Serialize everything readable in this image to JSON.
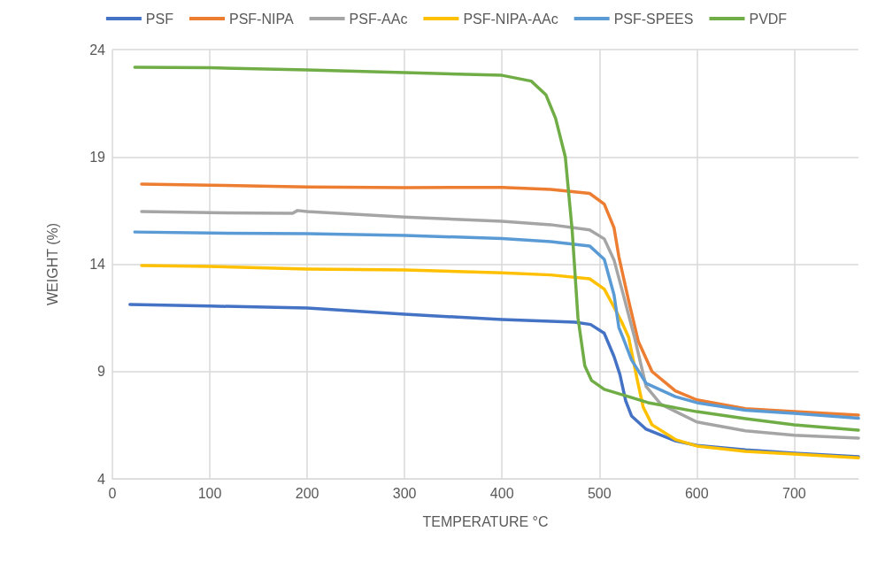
{
  "chart_data": {
    "type": "line",
    "xlabel": "TEMPERATURE °C",
    "ylabel": "WEIGHT (%)",
    "xlim": [
      0,
      766
    ],
    "xticks": [
      0,
      100,
      200,
      300,
      400,
      500,
      600,
      700
    ],
    "ylim": [
      4,
      24
    ],
    "yticks": [
      4,
      9,
      14,
      19,
      24
    ],
    "grid": true,
    "legend": "top",
    "marker": "none",
    "line_style": "solid",
    "series": [
      {
        "name": "PSF",
        "color": "#4472c4",
        "x": [
          18,
          100,
          200,
          300,
          400,
          475,
          491,
          505,
          515,
          521,
          527,
          533,
          548,
          578,
          600,
          650,
          700,
          766
        ],
        "values": [
          12.12,
          12.05,
          11.96,
          11.67,
          11.42,
          11.3,
          11.19,
          10.78,
          9.7,
          8.87,
          7.63,
          6.93,
          6.31,
          5.77,
          5.56,
          5.35,
          5.2,
          5.03
        ]
      },
      {
        "name": "PSF-NIPA",
        "color": "#ed7d31",
        "x": [
          30,
          100,
          200,
          300,
          400,
          450,
          490,
          505,
          515,
          520,
          530,
          540,
          554,
          578,
          600,
          650,
          700,
          766
        ],
        "values": [
          17.73,
          17.68,
          17.6,
          17.57,
          17.58,
          17.48,
          17.3,
          16.8,
          15.7,
          14.35,
          12.3,
          10.4,
          9.0,
          8.1,
          7.68,
          7.27,
          7.13,
          6.97
        ]
      },
      {
        "name": "PSF-AAc",
        "color": "#a5a5a5",
        "x": [
          30,
          100,
          185,
          190,
          200,
          300,
          400,
          450,
          490,
          505,
          515,
          525,
          536,
          548,
          563,
          600,
          650,
          700,
          766
        ],
        "values": [
          16.45,
          16.4,
          16.37,
          16.5,
          16.45,
          16.2,
          16.0,
          15.84,
          15.6,
          15.18,
          14.2,
          12.5,
          10.6,
          8.3,
          7.48,
          6.65,
          6.24,
          6.03,
          5.9
        ]
      },
      {
        "name": "PSF-NIPA-AAc",
        "color": "#ffc000",
        "x": [
          30,
          100,
          200,
          300,
          400,
          450,
          490,
          505,
          515,
          523,
          530,
          539,
          545,
          554,
          578,
          600,
          650,
          700,
          766
        ],
        "values": [
          13.94,
          13.9,
          13.77,
          13.73,
          13.6,
          13.5,
          13.32,
          12.84,
          12.0,
          11.3,
          10.6,
          8.58,
          7.34,
          6.52,
          5.83,
          5.53,
          5.28,
          5.15,
          4.98
        ]
      },
      {
        "name": "PSF-SPEES",
        "color": "#5b9bd5",
        "x": [
          23,
          100,
          200,
          300,
          400,
          450,
          490,
          505,
          515,
          520,
          524,
          533,
          548,
          578,
          600,
          650,
          700,
          766
        ],
        "values": [
          15.5,
          15.45,
          15.42,
          15.34,
          15.2,
          15.05,
          14.85,
          14.23,
          12.58,
          11.05,
          10.6,
          9.54,
          8.45,
          7.83,
          7.55,
          7.2,
          7.05,
          6.82
        ]
      },
      {
        "name": "PVDF",
        "color": "#70ad47",
        "x": [
          23,
          100,
          200,
          300,
          400,
          430,
          445,
          455,
          465,
          472,
          478,
          485,
          492,
          505,
          530,
          550,
          600,
          650,
          700,
          766
        ],
        "values": [
          23.18,
          23.15,
          23.05,
          22.93,
          22.8,
          22.53,
          21.9,
          20.8,
          19.0,
          15.6,
          11.5,
          9.27,
          8.58,
          8.17,
          7.83,
          7.55,
          7.13,
          6.8,
          6.52,
          6.27
        ]
      }
    ]
  }
}
